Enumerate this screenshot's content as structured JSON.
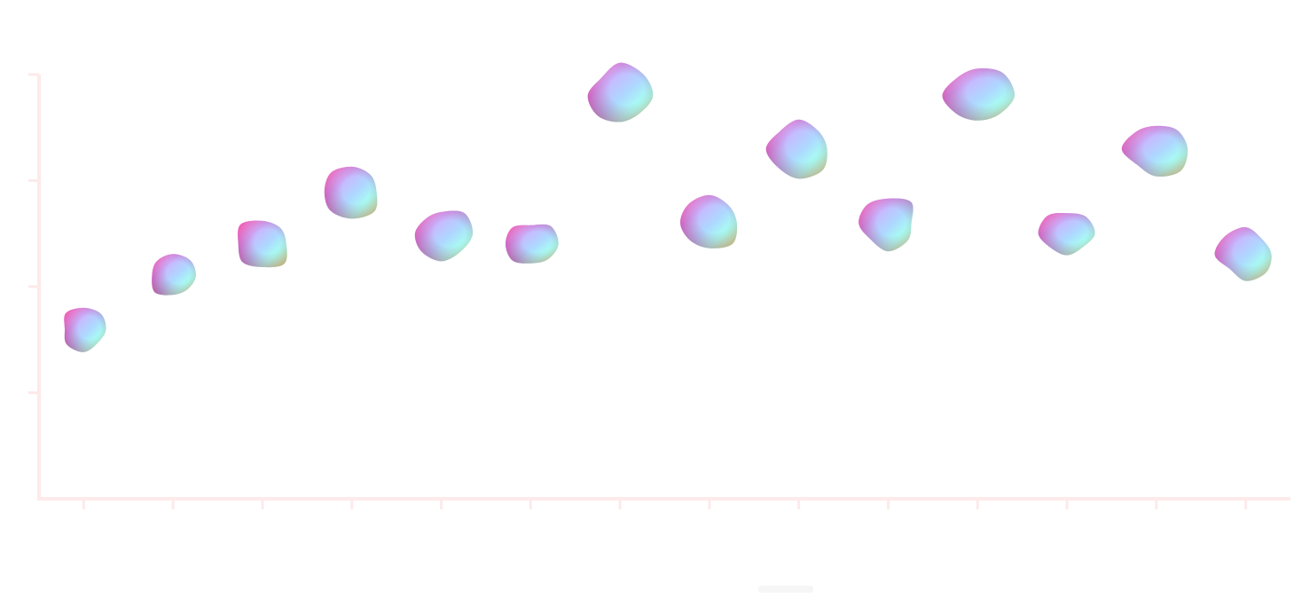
{
  "chart_data": {
    "type": "scatter",
    "title": "",
    "xlabel": "",
    "ylabel": "",
    "x": [
      1,
      2,
      3,
      4,
      5,
      6,
      7,
      8,
      9,
      10,
      11,
      12,
      13,
      14
    ],
    "values": [
      1.6,
      2.1,
      2.4,
      2.9,
      2.5,
      2.4,
      3.8,
      2.6,
      3.3,
      2.6,
      3.8,
      2.5,
      3.3,
      2.3
    ],
    "sizes": [
      0.45,
      0.55,
      0.7,
      0.85,
      0.75,
      0.65,
      1.0,
      0.8,
      0.95,
      0.75,
      1.0,
      0.65,
      0.9,
      0.7
    ],
    "xlim": [
      0.5,
      14.5
    ],
    "ylim": [
      0,
      4
    ],
    "grid": false,
    "legend": "none",
    "palette": [
      "#ff2d55",
      "#ff6bff",
      "#8a5cff",
      "#4aa8ff",
      "#3dffe0",
      "#8dff4a",
      "#ffffff"
    ],
    "axis_color": "#fdeaea"
  }
}
